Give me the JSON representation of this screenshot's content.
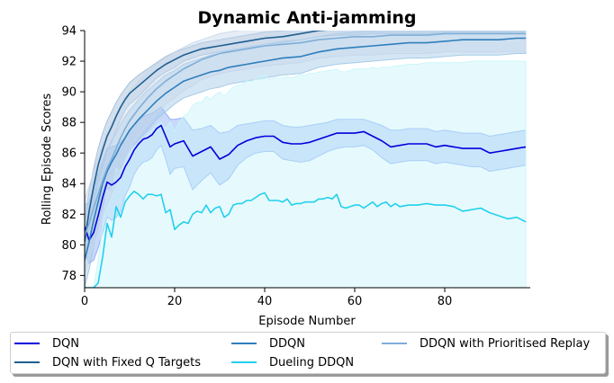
{
  "chart_data": {
    "type": "line",
    "title": "Dynamic Anti-jamming",
    "xlabel": "Episode Number",
    "ylabel": "Rolling Episode Scores",
    "xlim": [
      0,
      99
    ],
    "ylim": [
      77.2,
      94
    ],
    "xticks": [
      0,
      20,
      40,
      60,
      80
    ],
    "yticks": [
      78,
      80,
      82,
      84,
      86,
      88,
      90,
      92,
      94
    ],
    "grid": false,
    "legend_position": "below, 3 columns",
    "series": [
      {
        "name": "DQN",
        "color": "#0000dd",
        "x": [
          0,
          1,
          2,
          3,
          4,
          5,
          6,
          7,
          8,
          9,
          10,
          11,
          12,
          13,
          14,
          15,
          16,
          17,
          18,
          19,
          20,
          22,
          24,
          26,
          28,
          30,
          32,
          34,
          36,
          38,
          40,
          42,
          44,
          46,
          48,
          50,
          52,
          54,
          56,
          58,
          60,
          62,
          64,
          66,
          68,
          70,
          72,
          74,
          76,
          78,
          80,
          82,
          84,
          86,
          88,
          90,
          92,
          94,
          96,
          98
        ],
        "y": [
          81.2,
          80.3,
          80.8,
          81.9,
          83.1,
          84.1,
          83.9,
          84.1,
          84.4,
          85.1,
          85.6,
          86.2,
          86.6,
          86.9,
          87.0,
          87.2,
          87.6,
          87.8,
          87.1,
          86.4,
          86.6,
          86.8,
          85.8,
          86.1,
          86.4,
          85.6,
          85.9,
          86.5,
          86.8,
          87.0,
          87.1,
          87.1,
          86.7,
          86.6,
          86.6,
          86.7,
          86.9,
          87.1,
          87.3,
          87.3,
          87.3,
          87.4,
          87.1,
          86.8,
          86.4,
          86.5,
          86.6,
          86.6,
          86.6,
          86.4,
          86.5,
          86.4,
          86.3,
          86.3,
          86.3,
          86.0,
          86.1,
          86.2,
          86.3,
          86.4
        ],
        "band": {
          "fill": "#88aaf5",
          "upper": [
            82.6,
            82.8,
            83.6,
            84.6,
            85.5,
            86.3,
            86.4,
            86.5,
            86.7,
            87.0,
            87.4,
            87.8,
            88.1,
            88.4,
            88.5,
            88.6,
            88.8,
            89.0,
            88.6,
            88.2,
            88.2,
            88.3,
            87.5,
            87.6,
            87.8,
            87.3,
            87.4,
            87.8,
            87.9,
            88.0,
            88.1,
            88.1,
            87.8,
            87.7,
            87.7,
            87.8,
            87.9,
            88.0,
            88.2,
            88.2,
            88.2,
            88.2,
            88.0,
            87.8,
            87.5,
            87.5,
            87.6,
            87.6,
            87.6,
            87.4,
            87.5,
            87.4,
            87.3,
            87.3,
            87.3,
            87.1,
            87.2,
            87.3,
            87.4,
            87.5
          ],
          "lower": [
            79.6,
            78.8,
            79.0,
            79.8,
            80.8,
            81.8,
            81.6,
            81.8,
            82.2,
            83.2,
            83.8,
            84.6,
            85.1,
            85.4,
            85.5,
            85.7,
            86.2,
            86.5,
            85.6,
            84.6,
            85.0,
            85.1,
            83.6,
            84.2,
            84.7,
            83.9,
            84.3,
            85.2,
            85.7,
            86.0,
            86.1,
            86.1,
            85.6,
            85.5,
            85.4,
            85.5,
            85.8,
            86.1,
            86.3,
            86.4,
            86.4,
            86.5,
            86.2,
            85.7,
            85.3,
            85.4,
            85.5,
            85.5,
            85.5,
            85.3,
            85.4,
            85.3,
            85.2,
            85.1,
            85.1,
            84.8,
            84.9,
            85.0,
            85.1,
            85.2
          ]
        }
      },
      {
        "name": "DQN with Fixed Q Targets",
        "color": "#1f5f91",
        "x": [
          0,
          1,
          2,
          3,
          4,
          5,
          6,
          7,
          8,
          9,
          10,
          12,
          14,
          16,
          18,
          20,
          22,
          24,
          26,
          28,
          30,
          32,
          34,
          36,
          38,
          40,
          44,
          48,
          52,
          56,
          60,
          64,
          68,
          72,
          76,
          80,
          84,
          88,
          92,
          96,
          98
        ],
        "y": [
          80.2,
          82.2,
          83.8,
          85.2,
          86.2,
          87.1,
          87.7,
          88.4,
          89.0,
          89.5,
          89.9,
          90.4,
          90.9,
          91.4,
          91.8,
          92.1,
          92.4,
          92.6,
          92.8,
          92.9,
          93.0,
          93.1,
          93.2,
          93.3,
          93.4,
          93.5,
          93.6,
          93.8,
          94.0,
          94.1,
          94.1,
          94.2,
          94.2,
          94.2,
          94.2,
          94.3,
          94.3,
          94.3,
          94.3,
          94.3,
          94.3
        ],
        "band": {
          "fill": "#9fbdd8",
          "upper": [
            81.5,
            83.5,
            85.0,
            86.3,
            87.3,
            88.1,
            88.7,
            89.3,
            89.8,
            90.2,
            90.6,
            91.1,
            91.5,
            91.9,
            92.3,
            92.6,
            92.8,
            93.0,
            93.2,
            93.3,
            93.4,
            93.5,
            93.6,
            93.7,
            93.8,
            93.9,
            94.0,
            94.2,
            94.4,
            94.5,
            94.5,
            94.6,
            94.6,
            94.6,
            94.6,
            94.7,
            94.7,
            94.7,
            94.7,
            94.7,
            94.7
          ],
          "lower": [
            78.9,
            80.9,
            82.6,
            84.1,
            85.1,
            86.1,
            86.7,
            87.5,
            88.2,
            88.8,
            89.2,
            89.7,
            90.3,
            90.9,
            91.3,
            91.6,
            92.0,
            92.2,
            92.4,
            92.5,
            92.6,
            92.7,
            92.8,
            92.9,
            93.0,
            93.1,
            93.2,
            93.4,
            93.6,
            93.7,
            93.7,
            93.8,
            93.8,
            93.8,
            93.8,
            93.9,
            93.9,
            93.9,
            93.9,
            93.9,
            93.9
          ]
        }
      },
      {
        "name": "DDQN",
        "color": "#2e7ebc",
        "x": [
          0,
          1,
          2,
          3,
          4,
          5,
          6,
          7,
          8,
          9,
          10,
          12,
          14,
          16,
          18,
          20,
          22,
          24,
          26,
          28,
          30,
          32,
          34,
          36,
          38,
          40,
          44,
          48,
          52,
          56,
          60,
          64,
          68,
          72,
          76,
          80,
          84,
          88,
          92,
          96,
          98
        ],
        "y": [
          79.0,
          80.2,
          81.6,
          82.8,
          84.0,
          84.8,
          85.4,
          85.9,
          86.5,
          87.0,
          87.5,
          88.2,
          88.8,
          89.4,
          89.9,
          90.3,
          90.7,
          90.9,
          91.1,
          91.3,
          91.4,
          91.6,
          91.7,
          91.8,
          91.9,
          92.0,
          92.2,
          92.3,
          92.6,
          92.8,
          92.9,
          93.0,
          93.1,
          93.2,
          93.2,
          93.3,
          93.4,
          93.4,
          93.4,
          93.5,
          93.5
        ],
        "band": {
          "fill": "#9fc8e6",
          "upper": [
            80.8,
            82.0,
            83.3,
            84.4,
            85.5,
            86.2,
            86.8,
            87.3,
            87.9,
            88.4,
            88.8,
            89.5,
            90.1,
            90.6,
            91.1,
            91.4,
            91.8,
            92.0,
            92.2,
            92.4,
            92.5,
            92.7,
            92.8,
            92.9,
            93.0,
            93.1,
            93.3,
            93.4,
            93.6,
            93.8,
            93.9,
            94.0,
            94.1,
            94.2,
            94.2,
            94.3,
            94.4,
            94.4,
            94.4,
            94.5,
            94.5
          ],
          "lower": [
            77.2,
            78.4,
            79.9,
            81.2,
            82.5,
            83.4,
            84.0,
            84.5,
            85.1,
            85.6,
            86.2,
            86.9,
            87.5,
            88.2,
            88.7,
            89.2,
            89.6,
            89.8,
            90.0,
            90.2,
            90.3,
            90.5,
            90.6,
            90.7,
            90.8,
            90.9,
            91.1,
            91.2,
            91.6,
            91.8,
            91.9,
            92.0,
            92.1,
            92.2,
            92.2,
            92.3,
            92.4,
            92.4,
            92.4,
            92.5,
            92.5
          ]
        }
      },
      {
        "name": "Dueling DDQN",
        "color": "#22d0ee",
        "x": [
          0,
          2,
          3,
          4,
          5,
          6,
          7,
          8,
          9,
          10,
          11,
          12,
          13,
          14,
          15,
          16,
          17,
          18,
          19,
          20,
          21,
          22,
          23,
          24,
          25,
          26,
          27,
          28,
          29,
          30,
          31,
          32,
          33,
          34,
          35,
          36,
          37,
          38,
          39,
          40,
          41,
          42,
          43,
          44,
          45,
          46,
          47,
          48,
          49,
          50,
          51,
          52,
          53,
          54,
          55,
          56,
          57,
          58,
          59,
          60,
          61,
          62,
          63,
          64,
          65,
          66,
          67,
          68,
          69,
          70,
          72,
          74,
          76,
          78,
          80,
          82,
          84,
          86,
          88,
          90,
          92,
          94,
          96,
          98
        ],
        "y": [
          77.2,
          77.2,
          77.5,
          79.2,
          81.4,
          80.5,
          82.5,
          81.8,
          82.8,
          83.2,
          83.5,
          83.3,
          83.0,
          83.3,
          83.3,
          83.2,
          83.3,
          82.1,
          82.3,
          81.0,
          81.3,
          81.5,
          81.4,
          82.0,
          82.2,
          82.1,
          82.6,
          82.1,
          82.4,
          82.5,
          81.8,
          82.0,
          82.6,
          82.7,
          82.7,
          82.9,
          82.9,
          83.1,
          83.3,
          83.4,
          82.9,
          82.9,
          82.9,
          82.8,
          83.0,
          82.6,
          82.7,
          82.7,
          82.8,
          82.8,
          82.8,
          83.0,
          83.0,
          83.1,
          83.0,
          83.3,
          82.5,
          82.4,
          82.5,
          82.6,
          82.6,
          82.4,
          82.6,
          82.8,
          82.5,
          82.7,
          82.8,
          82.5,
          82.7,
          82.5,
          82.6,
          82.6,
          82.7,
          82.6,
          82.6,
          82.5,
          82.2,
          82.3,
          82.4,
          82.1,
          81.9,
          81.7,
          81.8,
          81.5
        ],
        "band": {
          "fill": "#c8f5fb",
          "upper": [
            77.2,
            77.2,
            79.0,
            81.2,
            83.6,
            83.2,
            85.0,
            84.8,
            85.5,
            86.0,
            86.4,
            86.6,
            86.8,
            87.2,
            87.5,
            87.8,
            88.0,
            87.6,
            88.0,
            87.4,
            88.0,
            88.4,
            88.6,
            89.1,
            89.3,
            89.3,
            89.7,
            89.5,
            89.8,
            90.0,
            89.7,
            90.0,
            90.3,
            90.4,
            90.5,
            90.7,
            90.7,
            90.8,
            91.0,
            91.1,
            90.8,
            90.9,
            90.9,
            90.9,
            91.0,
            90.9,
            91.0,
            91.1,
            91.1,
            91.2,
            91.2,
            91.3,
            91.3,
            91.4,
            91.4,
            91.5,
            91.3,
            91.3,
            91.4,
            91.5,
            91.5,
            91.5,
            91.5,
            91.6,
            91.5,
            91.6,
            91.6,
            91.6,
            91.7,
            91.7,
            91.8,
            91.8,
            91.9,
            91.9,
            91.9,
            91.9,
            91.9,
            92.0,
            92.0,
            92.0,
            92.0,
            92.0,
            92.0,
            92.0
          ],
          "lower": [
            77.2,
            77.2,
            77.2,
            77.2,
            77.2,
            77.2,
            77.2,
            77.2,
            77.2,
            77.2,
            77.2,
            77.2,
            77.2,
            77.2,
            77.2,
            77.2,
            77.2,
            77.2,
            77.2,
            77.2,
            77.2,
            77.2,
            77.2,
            77.2,
            77.2,
            77.2,
            77.2,
            77.2,
            77.2,
            77.2,
            77.2,
            77.2,
            77.2,
            77.2,
            77.2,
            77.2,
            77.2,
            77.2,
            77.2,
            77.2,
            77.2,
            77.2,
            77.2,
            77.2,
            77.2,
            77.2,
            77.2,
            77.2,
            77.2,
            77.2,
            77.2,
            77.2,
            77.2,
            77.2,
            77.2,
            77.2,
            77.2,
            77.2,
            77.2,
            77.2,
            77.2,
            77.2,
            77.2,
            77.2,
            77.2,
            77.2,
            77.2,
            77.2,
            77.2,
            77.2,
            77.2,
            77.2,
            77.2,
            77.2,
            77.2,
            77.2,
            77.2,
            77.2,
            77.2,
            77.2,
            77.2,
            77.2,
            77.2,
            77.2
          ]
        }
      },
      {
        "name": "DDQN with Prioritised Replay",
        "color": "#7eaed8",
        "x": [
          0,
          1,
          2,
          3,
          4,
          5,
          6,
          7,
          8,
          9,
          10,
          12,
          14,
          16,
          18,
          20,
          22,
          24,
          26,
          28,
          30,
          32,
          34,
          36,
          38,
          40,
          44,
          48,
          52,
          56,
          60,
          64,
          68,
          72,
          76,
          80,
          84,
          88,
          92,
          96,
          98
        ],
        "y": [
          80.6,
          81.4,
          82.4,
          83.3,
          84.2,
          85.0,
          85.6,
          86.3,
          87.0,
          87.6,
          88.1,
          88.9,
          89.6,
          90.2,
          90.7,
          91.1,
          91.5,
          91.8,
          92.1,
          92.3,
          92.5,
          92.6,
          92.7,
          92.8,
          92.9,
          93.0,
          93.1,
          93.2,
          93.4,
          93.5,
          93.6,
          93.6,
          93.7,
          93.7,
          93.7,
          93.8,
          93.8,
          93.8,
          93.8,
          93.8,
          93.8
        ],
        "band": {
          "fill": "#c8d6ea",
          "upper": [
            83.0,
            83.8,
            84.8,
            85.7,
            86.5,
            87.3,
            87.9,
            88.5,
            89.1,
            89.6,
            90.0,
            90.7,
            91.3,
            91.8,
            92.2,
            92.6,
            92.9,
            93.2,
            93.4,
            93.6,
            93.8,
            93.9,
            94.0,
            94.1,
            94.2,
            94.3,
            94.4,
            94.5,
            94.6,
            94.7,
            94.8,
            94.8,
            94.9,
            94.9,
            94.9,
            95.0,
            95.0,
            95.0,
            95.0,
            95.0,
            95.0
          ],
          "lower": [
            78.2,
            79.0,
            80.0,
            80.9,
            81.9,
            82.7,
            83.3,
            84.1,
            84.9,
            85.6,
            86.2,
            87.1,
            87.9,
            88.6,
            89.2,
            89.6,
            90.1,
            90.4,
            90.8,
            91.0,
            91.2,
            91.3,
            91.4,
            91.5,
            91.6,
            91.7,
            91.8,
            91.9,
            92.2,
            92.3,
            92.4,
            92.4,
            92.5,
            92.5,
            92.5,
            92.6,
            92.6,
            92.6,
            92.6,
            92.6,
            92.6
          ]
        }
      }
    ]
  },
  "legend": {
    "items": [
      {
        "label": "DQN",
        "color": "#0000dd"
      },
      {
        "label": "DQN with Fixed Q Targets",
        "color": "#1f5f91"
      },
      {
        "label": "DDQN",
        "color": "#2e7ebc"
      },
      {
        "label": "Dueling DDQN",
        "color": "#22d0ee"
      },
      {
        "label": "DDQN with Prioritised Replay",
        "color": "#7eaed8"
      }
    ]
  }
}
